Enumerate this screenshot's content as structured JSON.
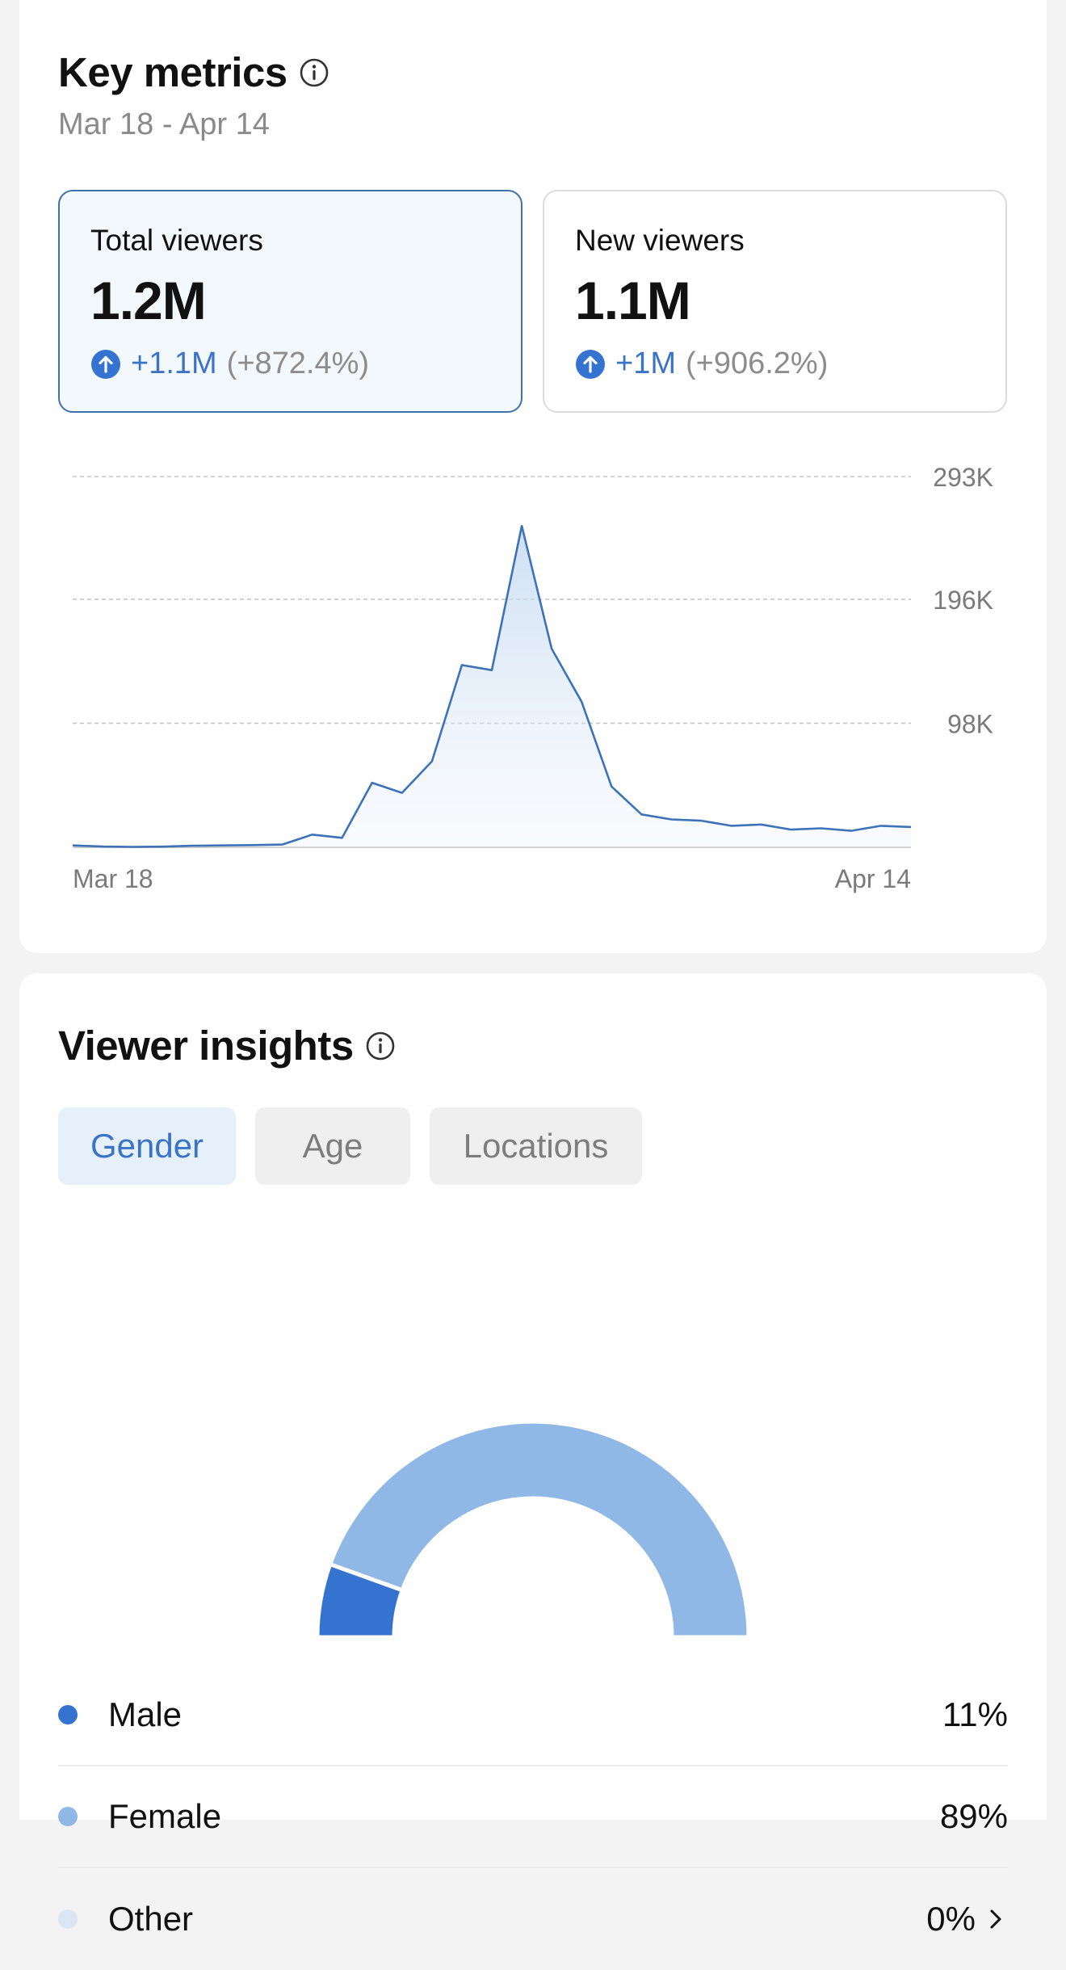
{
  "key_metrics": {
    "title": "Key metrics",
    "date_range": "Mar 18 - Apr 14",
    "cards": [
      {
        "label": "Total viewers",
        "value": "1.2M",
        "change": "+1.1M",
        "change_pct": "(+872.4%)",
        "selected": true
      },
      {
        "label": "New viewers",
        "value": "1.1M",
        "change": "+1M",
        "change_pct": "(+906.2%)",
        "selected": false
      }
    ]
  },
  "chart_data": {
    "type": "area",
    "x_start_label": "Mar 18",
    "x_end_label": "Apr 14",
    "yticks": [
      {
        "value": 98000,
        "label": "98K"
      },
      {
        "value": 196000,
        "label": "196K"
      },
      {
        "value": 293000,
        "label": "293K"
      }
    ],
    "ylim": [
      0,
      293000
    ],
    "grid": true,
    "values": [
      1500,
      600,
      300,
      500,
      1200,
      1500,
      1700,
      2200,
      10000,
      7500,
      51000,
      43000,
      68000,
      144000,
      140000,
      254000,
      157000,
      115000,
      48000,
      26000,
      22000,
      21000,
      17000,
      18000,
      14000,
      15000,
      13000,
      17000,
      16000
    ],
    "line_color": "#3d73b6"
  },
  "viewer_insights": {
    "title": "Viewer insights",
    "tabs": [
      {
        "label": "Gender",
        "active": true
      },
      {
        "label": "Age",
        "active": false
      },
      {
        "label": "Locations",
        "active": false
      }
    ],
    "gender": [
      {
        "label": "Male",
        "value": "11%",
        "fraction": 0.11,
        "color": "#3573d1"
      },
      {
        "label": "Female",
        "value": "89%",
        "fraction": 0.89,
        "color": "#90b8e7"
      },
      {
        "label": "Other",
        "value": "0%",
        "fraction": 0.0,
        "color": "#dbe6f3"
      }
    ]
  }
}
